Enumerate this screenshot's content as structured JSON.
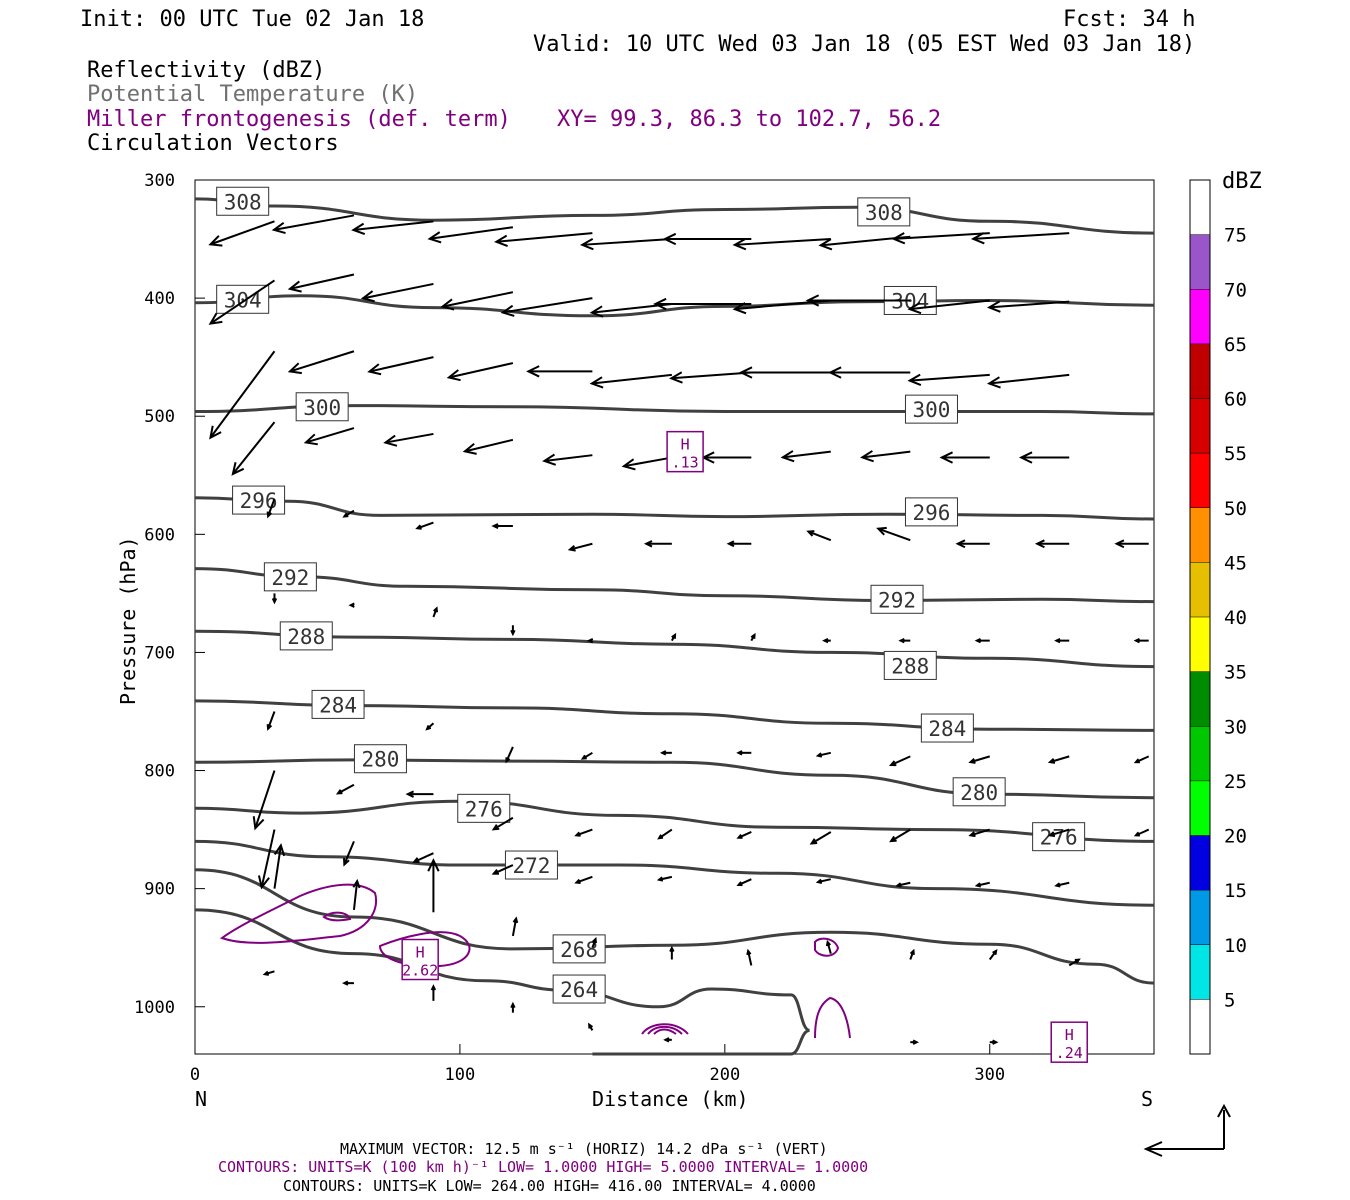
{
  "header": {
    "init": "Init: 00 UTC Tue 02 Jan 18",
    "fcst": "Fcst:   34 h",
    "valid": "Valid: 10 UTC Wed 03 Jan 18 (05 EST Wed 03 Jan 18)"
  },
  "legend": {
    "reflectivity": "Reflectivity (dBZ)",
    "theta": "Potential Temperature (K)",
    "miller": "Miller frontogenesis (def. term)",
    "xy": "XY=  99.3, 86.3 to 102.7, 56.2",
    "circ": "Circulation Vectors"
  },
  "colors": {
    "theta": "#404040",
    "miller": "#800080",
    "legend_gray": "#707070"
  },
  "axes": {
    "ylabel": "Pressure (hPa)",
    "xlabel": "Distance (km)",
    "left_end": "N",
    "right_end": "S"
  },
  "colorbar": {
    "unit": "dBZ",
    "levels": [
      "5",
      "10",
      "15",
      "20",
      "25",
      "30",
      "35",
      "40",
      "45",
      "50",
      "55",
      "60",
      "65",
      "70",
      "75"
    ],
    "colors": [
      "#ffffff",
      "#00e5e5",
      "#0099e5",
      "#0000e0",
      "#00ff00",
      "#00c800",
      "#008c00",
      "#ffff00",
      "#e6c000",
      "#ff9000",
      "#ff0000",
      "#d60000",
      "#c00000",
      "#ff00ff",
      "#9955c9",
      "#ffffff"
    ]
  },
  "footer": {
    "max_vec": "MAXIMUM VECTOR:  12.5 m s⁻¹ (HORIZ)        14.2 dPa s⁻¹ (VERT)",
    "miller_contours": "CONTOURS:  UNITS=K (100 km h)⁻¹  LOW=  1.0000      HIGH=  5.0000      INTERVAL=   1.0000",
    "theta_contours": "CONTOURS:  UNITS=K  LOW=  264.00       HIGH=  416.00       INTERVAL=   4.0000"
  },
  "chart_data": {
    "type": "cross-section",
    "xlabel": "Distance (km)",
    "ylabel": "Pressure (hPa)",
    "xlim": [
      0,
      362
    ],
    "ylim": [
      1040,
      300
    ],
    "x_ticks": [
      0,
      100,
      200,
      300
    ],
    "y_ticks": [
      300,
      400,
      500,
      600,
      700,
      800,
      900,
      1000
    ],
    "theta_isentropes": [
      {
        "level": 308,
        "x": [
          0,
          30,
          90,
          150,
          200,
          250,
          300,
          362
        ],
        "p": [
          316,
          322,
          334,
          330,
          325,
          323,
          335,
          345
        ],
        "labels": [
          {
            "x": 18,
            "p": 318
          },
          {
            "x": 260,
            "p": 327
          }
        ]
      },
      {
        "level": 304,
        "x": [
          0,
          40,
          90,
          150,
          200,
          250,
          300,
          362
        ],
        "p": [
          404,
          398,
          408,
          415,
          407,
          403,
          402,
          406
        ],
        "labels": [
          {
            "x": 18,
            "p": 401
          },
          {
            "x": 270,
            "p": 402
          }
        ]
      },
      {
        "level": 300,
        "x": [
          0,
          60,
          120,
          200,
          260,
          320,
          362
        ],
        "p": [
          496,
          491,
          492,
          496,
          496,
          496,
          498
        ],
        "labels": [
          {
            "x": 48,
            "p": 492
          },
          {
            "x": 278,
            "p": 494
          }
        ]
      },
      {
        "level": 296,
        "x": [
          0,
          35,
          70,
          150,
          200,
          260,
          320,
          362
        ],
        "p": [
          569,
          572,
          584,
          583,
          585,
          583,
          584,
          587
        ],
        "labels": [
          {
            "x": 24,
            "p": 571
          },
          {
            "x": 278,
            "p": 581
          }
        ]
      },
      {
        "level": 292,
        "x": [
          0,
          40,
          80,
          150,
          200,
          260,
          320,
          362
        ],
        "p": [
          629,
          636,
          644,
          647,
          652,
          656,
          655,
          657
        ],
        "labels": [
          {
            "x": 36,
            "p": 636
          },
          {
            "x": 265,
            "p": 655
          }
        ]
      },
      {
        "level": 288,
        "x": [
          0,
          60,
          120,
          180,
          240,
          300,
          362
        ],
        "p": [
          682,
          687,
          689,
          693,
          700,
          705,
          712
        ],
        "labels": [
          {
            "x": 42,
            "p": 686
          },
          {
            "x": 270,
            "p": 711
          }
        ]
      },
      {
        "level": 284,
        "x": [
          0,
          60,
          120,
          180,
          240,
          300,
          362
        ],
        "p": [
          741,
          745,
          747,
          752,
          760,
          765,
          766
        ],
        "labels": [
          {
            "x": 54,
            "p": 744
          },
          {
            "x": 284,
            "p": 764
          }
        ]
      },
      {
        "level": 280,
        "x": [
          0,
          60,
          120,
          180,
          240,
          300,
          362
        ],
        "p": [
          793,
          791,
          792,
          793,
          804,
          820,
          823
        ],
        "labels": [
          {
            "x": 70,
            "p": 790
          },
          {
            "x": 296,
            "p": 818
          }
        ]
      },
      {
        "level": 276,
        "x": [
          0,
          40,
          100,
          160,
          220,
          280,
          362
        ],
        "p": [
          832,
          836,
          826,
          838,
          848,
          850,
          860
        ],
        "labels": [
          {
            "x": 109,
            "p": 832
          },
          {
            "x": 326,
            "p": 856
          }
        ]
      },
      {
        "level": 272,
        "x": [
          0,
          50,
          100,
          160,
          220,
          280,
          362
        ],
        "p": [
          860,
          873,
          880,
          880,
          887,
          900,
          914
        ],
        "labels": [
          {
            "x": 127,
            "p": 880
          }
        ]
      },
      {
        "level": 268,
        "x": [
          0,
          60,
          120,
          180,
          240,
          300,
          340,
          362
        ],
        "p": [
          884,
          924,
          951,
          948,
          937,
          947,
          964,
          980
        ],
        "labels": [
          {
            "x": 145,
            "p": 951
          }
        ]
      },
      {
        "level": 264,
        "x": [
          0,
          60,
          110,
          140,
          175,
          195,
          225,
          232,
          225,
          215,
          200,
          175,
          157,
          150
        ],
        "p": [
          918,
          955,
          978,
          986,
          1000,
          985,
          990,
          1020,
          1040,
          1040,
          1040,
          1040,
          1040,
          1040
        ],
        "labels": [
          {
            "x": 145,
            "p": 985
          }
        ]
      }
    ],
    "miller_frontogenesis": {
      "maxima": [
        {
          "label": "H",
          "value": ".13",
          "x": 185,
          "p": 530
        },
        {
          "label": "H",
          "value": "2.62",
          "x": 85,
          "p": 960
        },
        {
          "label": "H",
          "value": ".24",
          "x": 330,
          "p": 1030
        }
      ],
      "contour_level_min": 1.0,
      "contour_level_max": 5.0,
      "contour_interval": 1.0
    },
    "vectors": [
      {
        "x": 30,
        "p": 335,
        "u": -20,
        "v": -8
      },
      {
        "x": 60,
        "p": 330,
        "u": -25,
        "v": -5
      },
      {
        "x": 90,
        "p": 335,
        "u": -25,
        "v": -3
      },
      {
        "x": 120,
        "p": 340,
        "u": -26,
        "v": -4
      },
      {
        "x": 150,
        "p": 345,
        "u": -30,
        "v": -3
      },
      {
        "x": 180,
        "p": 350,
        "u": -28,
        "v": -2
      },
      {
        "x": 210,
        "p": 350,
        "u": -27,
        "v": 0
      },
      {
        "x": 240,
        "p": 350,
        "u": -30,
        "v": -2
      },
      {
        "x": 270,
        "p": 348,
        "u": -28,
        "v": -3
      },
      {
        "x": 300,
        "p": 345,
        "u": -30,
        "v": -2
      },
      {
        "x": 330,
        "p": 345,
        "u": -30,
        "v": -2
      },
      {
        "x": 30,
        "p": 385,
        "u": -20,
        "v": -15
      },
      {
        "x": 60,
        "p": 380,
        "u": -20,
        "v": -5
      },
      {
        "x": 90,
        "p": 388,
        "u": -22,
        "v": -5
      },
      {
        "x": 120,
        "p": 395,
        "u": -22,
        "v": -5
      },
      {
        "x": 150,
        "p": 400,
        "u": -28,
        "v": -5
      },
      {
        "x": 180,
        "p": 405,
        "u": -25,
        "v": -3
      },
      {
        "x": 210,
        "p": 405,
        "u": -30,
        "v": 0
      },
      {
        "x": 240,
        "p": 402,
        "u": -30,
        "v": -3
      },
      {
        "x": 270,
        "p": 402,
        "u": -32,
        "v": 0
      },
      {
        "x": 300,
        "p": 402,
        "u": -25,
        "v": -3
      },
      {
        "x": 330,
        "p": 403,
        "u": -25,
        "v": -2
      },
      {
        "x": 30,
        "p": 445,
        "u": -20,
        "v": -30
      },
      {
        "x": 60,
        "p": 445,
        "u": -20,
        "v": -7
      },
      {
        "x": 90,
        "p": 450,
        "u": -20,
        "v": -5
      },
      {
        "x": 120,
        "p": 455,
        "u": -20,
        "v": -5
      },
      {
        "x": 150,
        "p": 462,
        "u": -20,
        "v": 0
      },
      {
        "x": 180,
        "p": 465,
        "u": -25,
        "v": -3
      },
      {
        "x": 210,
        "p": 463,
        "u": -25,
        "v": -2
      },
      {
        "x": 240,
        "p": 463,
        "u": -28,
        "v": 0
      },
      {
        "x": 270,
        "p": 463,
        "u": -25,
        "v": 0
      },
      {
        "x": 300,
        "p": 465,
        "u": -25,
        "v": -2
      },
      {
        "x": 330,
        "p": 465,
        "u": -25,
        "v": -3
      },
      {
        "x": 30,
        "p": 505,
        "u": -13,
        "v": -18
      },
      {
        "x": 60,
        "p": 510,
        "u": -15,
        "v": -5
      },
      {
        "x": 90,
        "p": 515,
        "u": -15,
        "v": -3
      },
      {
        "x": 120,
        "p": 520,
        "u": -15,
        "v": -4
      },
      {
        "x": 150,
        "p": 533,
        "u": -15,
        "v": -2
      },
      {
        "x": 180,
        "p": 535,
        "u": -15,
        "v": -3
      },
      {
        "x": 210,
        "p": 535,
        "u": -15,
        "v": 0
      },
      {
        "x": 240,
        "p": 530,
        "u": -15,
        "v": -2
      },
      {
        "x": 270,
        "p": 530,
        "u": -15,
        "v": -2
      },
      {
        "x": 300,
        "p": 535,
        "u": -15,
        "v": 0
      },
      {
        "x": 330,
        "p": 535,
        "u": -15,
        "v": 0
      },
      {
        "x": 30,
        "p": 570,
        "u": -2,
        "v": -6
      },
      {
        "x": 60,
        "p": 580,
        "u": -3,
        "v": -2
      },
      {
        "x": 90,
        "p": 590,
        "u": -5,
        "v": -2
      },
      {
        "x": 120,
        "p": 593,
        "u": -6,
        "v": 0
      },
      {
        "x": 150,
        "p": 608,
        "u": -7,
        "v": -2
      },
      {
        "x": 180,
        "p": 608,
        "u": -8,
        "v": 0
      },
      {
        "x": 210,
        "p": 608,
        "u": -7,
        "v": 0
      },
      {
        "x": 240,
        "p": 605,
        "u": -7,
        "v": 3
      },
      {
        "x": 270,
        "p": 605,
        "u": -10,
        "v": 4
      },
      {
        "x": 300,
        "p": 608,
        "u": -10,
        "v": 0
      },
      {
        "x": 330,
        "p": 608,
        "u": -10,
        "v": 0
      },
      {
        "x": 360,
        "p": 608,
        "u": -10,
        "v": 0
      },
      {
        "x": 30,
        "p": 650,
        "u": 0,
        "v": -3
      },
      {
        "x": 60,
        "p": 660,
        "u": -1,
        "v": 0
      },
      {
        "x": 90,
        "p": 670,
        "u": 1,
        "v": 3
      },
      {
        "x": 120,
        "p": 677,
        "u": 0,
        "v": -3
      },
      {
        "x": 150,
        "p": 690,
        "u": -1,
        "v": 0
      },
      {
        "x": 180,
        "p": 690,
        "u": 1,
        "v": 2
      },
      {
        "x": 210,
        "p": 690,
        "u": 1,
        "v": 2
      },
      {
        "x": 240,
        "p": 690,
        "u": -2,
        "v": 0
      },
      {
        "x": 270,
        "p": 690,
        "u": -3,
        "v": 0
      },
      {
        "x": 300,
        "p": 690,
        "u": -4,
        "v": 0
      },
      {
        "x": 330,
        "p": 690,
        "u": -4,
        "v": 0
      },
      {
        "x": 360,
        "p": 690,
        "u": -4,
        "v": 0
      },
      {
        "x": 30,
        "p": 750,
        "u": -2,
        "v": -6
      },
      {
        "x": 90,
        "p": 760,
        "u": -2,
        "v": -2
      },
      {
        "x": 120,
        "p": 780,
        "u": -2,
        "v": -5
      },
      {
        "x": 150,
        "p": 785,
        "u": -3,
        "v": -2
      },
      {
        "x": 180,
        "p": 785,
        "u": -3,
        "v": 0
      },
      {
        "x": 210,
        "p": 785,
        "u": -4,
        "v": 0
      },
      {
        "x": 240,
        "p": 785,
        "u": -4,
        "v": -1
      },
      {
        "x": 270,
        "p": 788,
        "u": -6,
        "v": -3
      },
      {
        "x": 300,
        "p": 788,
        "u": -6,
        "v": -2
      },
      {
        "x": 330,
        "p": 788,
        "u": -6,
        "v": -2
      },
      {
        "x": 360,
        "p": 788,
        "u": -4,
        "v": -2
      },
      {
        "x": 30,
        "p": 800,
        "u": -6,
        "v": -20
      },
      {
        "x": 60,
        "p": 812,
        "u": -5,
        "v": -3
      },
      {
        "x": 90,
        "p": 820,
        "u": -8,
        "v": 0
      },
      {
        "x": 120,
        "p": 840,
        "u": -6,
        "v": -4
      },
      {
        "x": 150,
        "p": 850,
        "u": -5,
        "v": -2
      },
      {
        "x": 180,
        "p": 850,
        "u": -4,
        "v": -3
      },
      {
        "x": 210,
        "p": 852,
        "u": -4,
        "v": -2
      },
      {
        "x": 240,
        "p": 852,
        "u": -6,
        "v": -4
      },
      {
        "x": 270,
        "p": 850,
        "u": -6,
        "v": -4
      },
      {
        "x": 300,
        "p": 850,
        "u": -6,
        "v": -2
      },
      {
        "x": 330,
        "p": 850,
        "u": -6,
        "v": -2
      },
      {
        "x": 360,
        "p": 850,
        "u": -4,
        "v": -2
      },
      {
        "x": 30,
        "p": 850,
        "u": -4,
        "v": -20
      },
      {
        "x": 60,
        "p": 860,
        "u": -3,
        "v": -8
      },
      {
        "x": 90,
        "p": 870,
        "u": -6,
        "v": -3
      },
      {
        "x": 120,
        "p": 880,
        "u": -6,
        "v": -3
      },
      {
        "x": 150,
        "p": 890,
        "u": -5,
        "v": -2
      },
      {
        "x": 180,
        "p": 890,
        "u": -4,
        "v": -1
      },
      {
        "x": 210,
        "p": 892,
        "u": -4,
        "v": -2
      },
      {
        "x": 240,
        "p": 892,
        "u": -4,
        "v": -1
      },
      {
        "x": 270,
        "p": 895,
        "u": -4,
        "v": -1
      },
      {
        "x": 300,
        "p": 895,
        "u": -4,
        "v": -1
      },
      {
        "x": 330,
        "p": 895,
        "u": -4,
        "v": -1
      },
      {
        "x": 30,
        "p": 900,
        "u": 2,
        "v": 15
      },
      {
        "x": 60,
        "p": 918,
        "u": 1,
        "v": 10
      },
      {
        "x": 90,
        "p": 920,
        "u": 0,
        "v": 18
      },
      {
        "x": 120,
        "p": 940,
        "u": 1,
        "v": 6
      },
      {
        "x": 150,
        "p": 950,
        "u": 1,
        "v": 3
      },
      {
        "x": 180,
        "p": 960,
        "u": 0,
        "v": 4
      },
      {
        "x": 210,
        "p": 965,
        "u": -1,
        "v": 5
      },
      {
        "x": 240,
        "p": 955,
        "u": -1,
        "v": 4
      },
      {
        "x": 270,
        "p": 960,
        "u": 1,
        "v": 3
      },
      {
        "x": 300,
        "p": 960,
        "u": 2,
        "v": 3
      },
      {
        "x": 330,
        "p": 965,
        "u": 3,
        "v": 2
      },
      {
        "x": 30,
        "p": 970,
        "u": -3,
        "v": -1
      },
      {
        "x": 60,
        "p": 980,
        "u": -3,
        "v": 0
      },
      {
        "x": 90,
        "p": 995,
        "u": 0,
        "v": 5
      },
      {
        "x": 120,
        "p": 1005,
        "u": 0,
        "v": 3
      },
      {
        "x": 150,
        "p": 1020,
        "u": -1,
        "v": 2
      },
      {
        "x": 180,
        "p": 1028,
        "u": -2,
        "v": 0
      },
      {
        "x": 270,
        "p": 1030,
        "u": 2,
        "v": 0
      },
      {
        "x": 300,
        "p": 1030,
        "u": 2,
        "v": 0
      },
      {
        "x": 330,
        "p": 1030,
        "u": 2,
        "v": 0
      }
    ]
  }
}
